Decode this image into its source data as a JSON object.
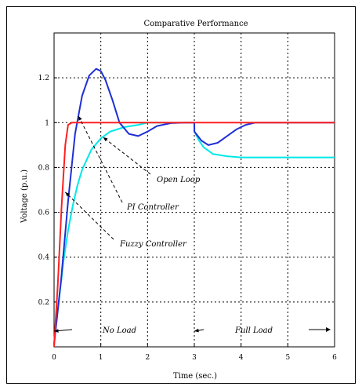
{
  "chart_data": {
    "type": "line",
    "title": "Comparative Performance",
    "xlabel": "Time (sec.)",
    "ylabel": "Voltage (p.u.)",
    "xlim": [
      0,
      6
    ],
    "ylim": [
      0,
      1.4
    ],
    "xticks": [
      0,
      1,
      2,
      3,
      4,
      5,
      6
    ],
    "yticks": [
      0.2,
      0.4,
      0.6,
      0.8,
      1,
      1.2
    ],
    "xtick_labels": [
      "0",
      "1",
      "2",
      "3",
      "4",
      "5",
      "6"
    ],
    "ytick_labels": [
      "0.2",
      "0.4",
      "0.6",
      "0.8",
      "1",
      "1.2"
    ],
    "grid": "dotted",
    "series": [
      {
        "name": "Open Loop",
        "color": "#00e8e8",
        "x": [
          0,
          0.1,
          0.2,
          0.3,
          0.4,
          0.5,
          0.6,
          0.8,
          1.0,
          1.2,
          1.5,
          1.8,
          2.0,
          2.5,
          3.0,
          3.001,
          3.1,
          3.2,
          3.4,
          3.7,
          4.0,
          4.5,
          5.0,
          5.5,
          6.0
        ],
        "y": [
          0.02,
          0.2,
          0.38,
          0.52,
          0.63,
          0.72,
          0.79,
          0.88,
          0.93,
          0.96,
          0.98,
          0.99,
          1.0,
          1.0,
          1.0,
          0.96,
          0.92,
          0.89,
          0.86,
          0.85,
          0.845,
          0.845,
          0.845,
          0.845,
          0.845
        ]
      },
      {
        "name": "PI Controller",
        "color": "#1f2fd6",
        "x": [
          0,
          0.15,
          0.3,
          0.45,
          0.6,
          0.75,
          0.9,
          1.0,
          1.1,
          1.25,
          1.4,
          1.6,
          1.8,
          2.0,
          2.2,
          2.5,
          2.8,
          3.0,
          3.001,
          3.15,
          3.3,
          3.5,
          3.7,
          3.9,
          4.1,
          4.3,
          4.6,
          5.0,
          5.5,
          6.0
        ],
        "y": [
          0.01,
          0.3,
          0.65,
          0.95,
          1.12,
          1.21,
          1.24,
          1.23,
          1.19,
          1.1,
          1.0,
          0.95,
          0.94,
          0.96,
          0.985,
          0.998,
          1.0,
          1.0,
          0.96,
          0.92,
          0.9,
          0.91,
          0.94,
          0.97,
          0.99,
          1.0,
          1.0,
          1.0,
          1.0,
          1.0
        ]
      },
      {
        "name": "Fuzzy Controller",
        "color": "#ff2020",
        "x": [
          0,
          0.08,
          0.16,
          0.24,
          0.3,
          0.38,
          0.5,
          0.8,
          1.2,
          2.0,
          3.0,
          4.0,
          5.0,
          6.0
        ],
        "y": [
          0.0,
          0.28,
          0.62,
          0.9,
          0.99,
          1.0,
          1.0,
          1.0,
          1.0,
          1.0,
          1.0,
          1.0,
          1.0,
          1.0
        ]
      }
    ],
    "annotations": [
      {
        "text": "Open Loop",
        "arrow_to": [
          1.05,
          0.935
        ]
      },
      {
        "text": "PI Controller",
        "arrow_to": [
          0.52,
          1.03
        ]
      },
      {
        "text": "Fuzzy Controller",
        "arrow_to": [
          0.24,
          0.69
        ]
      },
      {
        "text": "No Load",
        "arrow_to": [
          0.0,
          0.07
        ]
      },
      {
        "text": "Full Load",
        "arrow_to": [
          3.0,
          0.07
        ]
      }
    ]
  }
}
